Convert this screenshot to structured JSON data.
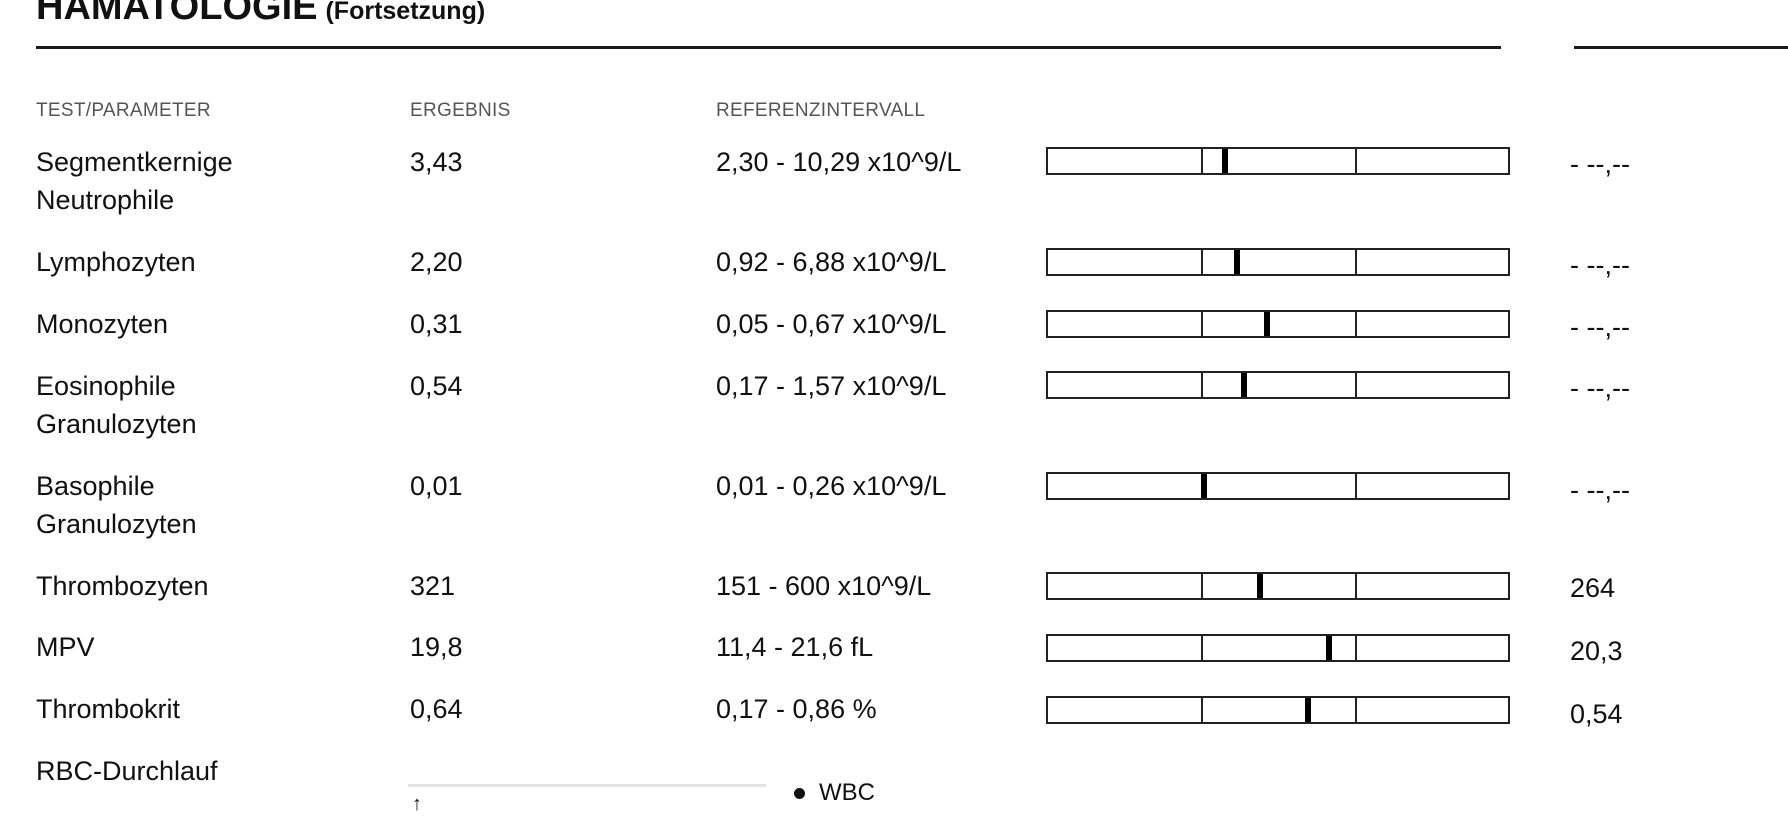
{
  "document": {
    "title": "HÄMATOLOGIE",
    "subtitle": "(Fortsetzung)"
  },
  "headers": {
    "test": "TEST/PARAMETER",
    "result": "ERGEBNIS",
    "reference": "REFERENZINTERVALL"
  },
  "rows": [
    {
      "name_1": "Segmentkernige",
      "name_2": "Neutrophile",
      "result": "3,43",
      "reference": "2,30 - 10,29 x10^9/L",
      "previous": "- --,--",
      "marker_fraction": 0.385
    },
    {
      "name_1": "Lymphozyten",
      "name_2": "",
      "result": "2,20",
      "reference": "0,92 - 6,88 x10^9/L",
      "previous": "- --,--",
      "marker_fraction": 0.41
    },
    {
      "name_1": "Monozyten",
      "name_2": "",
      "result": "0,31",
      "reference": "0,05 - 0,67 x10^9/L",
      "previous": "- --,--",
      "marker_fraction": 0.475
    },
    {
      "name_1": "Eosinophile",
      "name_2": "Granulozyten",
      "result": "0,54",
      "reference": "0,17 - 1,57 x10^9/L",
      "previous": "- --,--",
      "marker_fraction": 0.425
    },
    {
      "name_1": "Basophile",
      "name_2": "Granulozyten",
      "result": "0,01",
      "reference": "0,01 - 0,26 x10^9/L",
      "previous": "- --,--",
      "marker_fraction": 0.34
    },
    {
      "name_1": "Thrombozyten",
      "name_2": "",
      "result": "321",
      "reference": "151 - 600 x10^9/L",
      "previous": "264",
      "marker_fraction": 0.46
    },
    {
      "name_1": "MPV",
      "name_2": "",
      "result": "19,8",
      "reference": "11,4 - 21,6 fL",
      "previous": "20,3",
      "marker_fraction": 0.61
    },
    {
      "name_1": "Thrombokrit",
      "name_2": "",
      "result": "0,64",
      "reference": "0,17 - 0,86 %",
      "previous": "0,54",
      "marker_fraction": 0.565
    }
  ],
  "footer": {
    "section_label": "RBC-Durchlauf",
    "arrow_glyph": "↑",
    "legend_label": "WBC"
  }
}
